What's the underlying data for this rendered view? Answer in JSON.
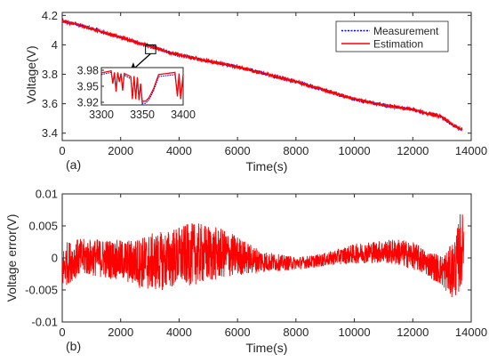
{
  "chart_data": [
    {
      "id": "a",
      "type": "line",
      "panel_label": "(a)",
      "title": "",
      "xlabel": "Time(s)",
      "ylabel": "Voltage(V)",
      "xlim": [
        0,
        14000
      ],
      "ylim": [
        3.35,
        4.22
      ],
      "xticks": [
        0,
        2000,
        4000,
        6000,
        8000,
        10000,
        12000,
        14000
      ],
      "yticks": [
        3.4,
        3.6,
        3.8,
        4.0,
        4.2
      ],
      "ytick_labels": [
        "3.4",
        "3.6",
        "3.8",
        "4",
        "4.2"
      ],
      "grid": false,
      "legend": {
        "position": "top-right",
        "entries": [
          "Measurement",
          "Estimation"
        ]
      },
      "series": [
        {
          "name": "Measurement",
          "color": "#0000ff",
          "style": "dotted",
          "x": [
            0,
            500,
            1000,
            2000,
            3000,
            4000,
            5000,
            6000,
            7000,
            8000,
            9000,
            10000,
            11000,
            12000,
            13000,
            13400,
            13700
          ],
          "y": [
            4.16,
            4.14,
            4.11,
            4.05,
            3.99,
            3.93,
            3.89,
            3.85,
            3.8,
            3.75,
            3.69,
            3.63,
            3.59,
            3.56,
            3.51,
            3.45,
            3.42
          ]
        },
        {
          "name": "Estimation",
          "color": "#ff0000",
          "style": "solid",
          "x": [
            0,
            500,
            1000,
            2000,
            3000,
            4000,
            5000,
            6000,
            7000,
            8000,
            9000,
            10000,
            11000,
            12000,
            13000,
            13400,
            13700
          ],
          "y": [
            4.16,
            4.14,
            4.11,
            4.05,
            3.99,
            3.93,
            3.89,
            3.85,
            3.8,
            3.75,
            3.69,
            3.63,
            3.59,
            3.56,
            3.51,
            3.45,
            3.42
          ]
        }
      ],
      "inset": {
        "xlim": [
          3300,
          3400
        ],
        "ylim": [
          3.915,
          3.985
        ],
        "xticks": [
          3300,
          3350,
          3400
        ],
        "yticks": [
          3.92,
          3.95,
          3.98
        ],
        "series": [
          {
            "name": "Measurement",
            "color": "#0000ff",
            "x": [
              3300,
              3312,
              3314,
              3316,
              3318,
              3320,
              3322,
              3324,
              3326,
              3328,
              3336,
              3338,
              3340,
              3342,
              3344,
              3346,
              3348,
              3350,
              3354,
              3356,
              3358,
              3364,
              3370,
              3380,
              3390,
              3393,
              3395,
              3397,
              3400
            ],
            "y": [
              3.972,
              3.976,
              3.958,
              3.973,
              3.944,
              3.973,
              3.962,
              3.971,
              3.946,
              3.971,
              3.964,
              3.93,
              3.965,
              3.93,
              3.963,
              3.928,
              3.951,
              3.918,
              3.918,
              3.921,
              3.924,
              3.942,
              3.968,
              3.97,
              3.972,
              3.935,
              3.97,
              3.93,
              3.968
            ]
          },
          {
            "name": "Estimation",
            "color": "#ff0000",
            "x": [
              3300,
              3312,
              3314,
              3316,
              3318,
              3320,
              3322,
              3324,
              3326,
              3328,
              3336,
              3338,
              3340,
              3342,
              3344,
              3346,
              3348,
              3350,
              3354,
              3356,
              3358,
              3364,
              3370,
              3380,
              3390,
              3393,
              3395,
              3397,
              3400
            ],
            "y": [
              3.975,
              3.979,
              3.955,
              3.976,
              3.94,
              3.976,
              3.958,
              3.974,
              3.942,
              3.974,
              3.968,
              3.926,
              3.969,
              3.926,
              3.967,
              3.924,
              3.955,
              3.922,
              3.922,
              3.925,
              3.928,
              3.946,
              3.972,
              3.974,
              3.976,
              3.931,
              3.974,
              3.926,
              3.972
            ]
          }
        ]
      },
      "zoom_box": {
        "x": [
          3300,
          3400
        ],
        "y": [
          3.94,
          4.0
        ]
      }
    },
    {
      "id": "b",
      "type": "line",
      "panel_label": "(b)",
      "title": "",
      "xlabel": "Time(s)",
      "ylabel": "Voltage error(V)",
      "xlim": [
        0,
        14000
      ],
      "ylim": [
        -0.01,
        0.01
      ],
      "xticks": [
        0,
        2000,
        4000,
        6000,
        8000,
        10000,
        12000,
        14000
      ],
      "yticks": [
        -0.01,
        -0.005,
        0,
        0.005,
        0.01
      ],
      "ytick_labels": [
        "-0.01",
        "-0.005",
        "0",
        "0.005",
        "0.01"
      ],
      "grid": false,
      "series": [
        {
          "name": "",
          "color": "#ff0000",
          "envelope_x": [
            0,
            100,
            500,
            1000,
            1500,
            2000,
            2500,
            3000,
            3500,
            4000,
            4500,
            5000,
            5500,
            6000,
            6500,
            7000,
            7500,
            8000,
            8500,
            9000,
            9500,
            10000,
            10500,
            11000,
            11500,
            12000,
            12500,
            13000,
            13300,
            13500,
            13650,
            13750
          ],
          "envelope_upper": [
            0.001,
            0.0025,
            0.003,
            0.003,
            0.003,
            0.0028,
            0.003,
            0.0038,
            0.0042,
            0.005,
            0.0055,
            0.0052,
            0.0045,
            0.0035,
            0.002,
            0.001,
            0.0005,
            0.0002,
            0.0004,
            0.0008,
            0.0015,
            0.0022,
            0.0026,
            0.0028,
            0.003,
            0.0025,
            0.0012,
            0.0005,
            0.002,
            0.004,
            0.008,
            0.006
          ],
          "envelope_lower": [
            -0.005,
            -0.0045,
            -0.003,
            -0.0028,
            -0.0032,
            -0.0035,
            -0.0045,
            -0.0052,
            -0.005,
            -0.0045,
            -0.0042,
            -0.004,
            -0.0032,
            -0.0028,
            -0.0025,
            -0.0022,
            -0.002,
            -0.0018,
            -0.0016,
            -0.0013,
            -0.001,
            -0.0009,
            -0.0008,
            -0.0008,
            -0.0012,
            -0.0018,
            -0.0028,
            -0.0045,
            -0.0062,
            -0.006,
            -0.0052,
            -0.001
          ]
        }
      ]
    }
  ]
}
